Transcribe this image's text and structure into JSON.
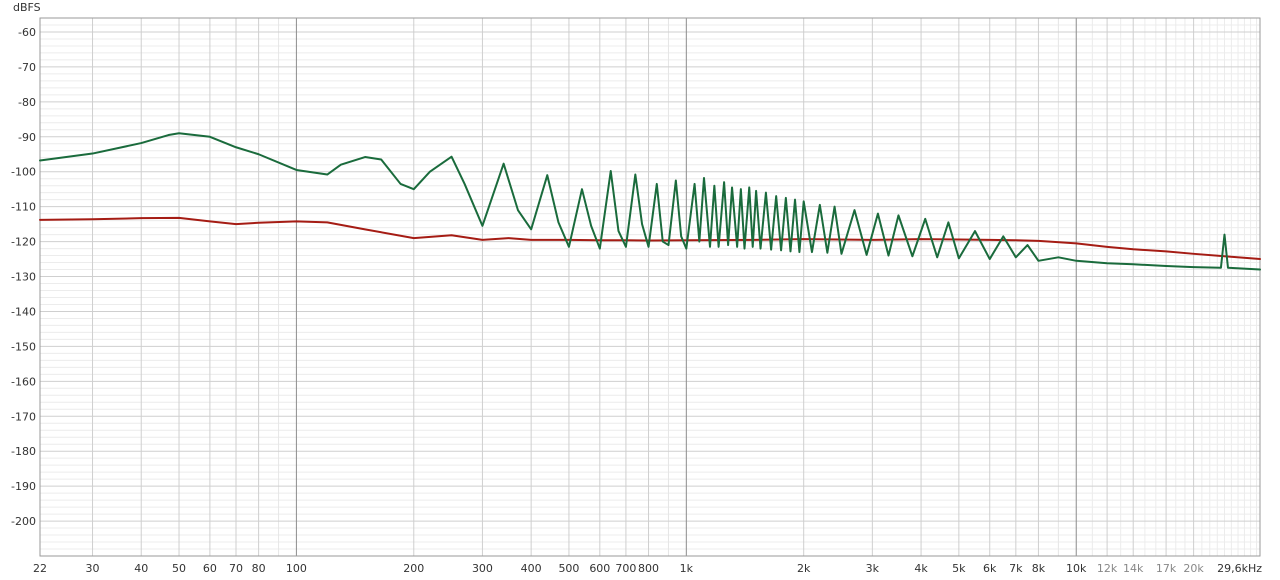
{
  "chart_data": {
    "type": "line",
    "y_unit_label": "dBFS",
    "x_scale": "log",
    "xlim": [
      22,
      29600
    ],
    "ylim": [
      -210,
      -56
    ],
    "grid": true,
    "y_ticks": [
      -60,
      -70,
      -80,
      -90,
      -100,
      -110,
      -120,
      -130,
      -140,
      -150,
      -160,
      -170,
      -180,
      -190,
      -200
    ],
    "y_tick_labels": [
      "-60",
      "-70",
      "-80",
      "-90",
      "-100",
      "-110",
      "-120",
      "-130",
      "-140",
      "-150",
      "-160",
      "-170",
      "-180",
      "-190",
      "-200"
    ],
    "x_ticks": [
      22,
      30,
      40,
      50,
      60,
      70,
      80,
      100,
      200,
      300,
      400,
      500,
      600,
      700,
      800,
      1000,
      2000,
      3000,
      4000,
      5000,
      6000,
      7000,
      8000,
      10000,
      12000,
      14000,
      17000,
      20000,
      29600
    ],
    "x_tick_labels": [
      "22",
      "30",
      "40",
      "50",
      "60",
      "70",
      "80",
      "100",
      "200",
      "300",
      "400",
      "500",
      "600",
      "700",
      "800",
      "1k",
      "2k",
      "3k",
      "4k",
      "5k",
      "6k",
      "7k",
      "8k",
      "10k",
      "12k",
      "14k",
      "17k",
      "20k",
      "29,6kHz"
    ],
    "series": [
      {
        "color": "#a51c14",
        "x": [
          22,
          30,
          40,
          50,
          60,
          70,
          80,
          100,
          120,
          150,
          200,
          250,
          300,
          350,
          400,
          500,
          600,
          700,
          800,
          1000,
          1500,
          2000,
          3000,
          4000,
          5000,
          6000,
          7000,
          8000,
          10000,
          12000,
          14000,
          17000,
          20000,
          24000,
          29600
        ],
        "y": [
          -113.8,
          -113.6,
          -113.3,
          -113.2,
          -114.2,
          -115.0,
          -114.6,
          -114.2,
          -114.5,
          -116.5,
          -119.0,
          -118.2,
          -119.5,
          -119.0,
          -119.5,
          -119.5,
          -119.6,
          -119.6,
          -119.7,
          -119.6,
          -119.5,
          -119.3,
          -119.5,
          -119.3,
          -119.4,
          -119.5,
          -119.6,
          -119.8,
          -120.5,
          -121.5,
          -122.2,
          -122.8,
          -123.5,
          -124.2,
          -125.0
        ]
      },
      {
        "color": "#1a6b3c",
        "x": [
          22,
          30,
          40,
          47,
          50,
          60,
          70,
          80,
          100,
          120,
          130,
          150,
          165,
          185,
          200,
          220,
          250,
          270,
          300,
          340,
          370,
          400,
          440,
          470,
          500,
          540,
          570,
          600,
          640,
          670,
          700,
          740,
          770,
          800,
          840,
          870,
          900,
          940,
          970,
          1000,
          1050,
          1080,
          1110,
          1150,
          1180,
          1210,
          1250,
          1280,
          1310,
          1350,
          1380,
          1410,
          1450,
          1480,
          1510,
          1550,
          1600,
          1650,
          1700,
          1750,
          1800,
          1850,
          1900,
          1950,
          2000,
          2100,
          2200,
          2300,
          2400,
          2500,
          2700,
          2900,
          3100,
          3300,
          3500,
          3800,
          4100,
          4400,
          4700,
          5000,
          5500,
          6000,
          6500,
          7000,
          7500,
          8000,
          9000,
          10000,
          12000,
          14000,
          17000,
          20000,
          23500,
          24000,
          24500,
          29600
        ],
        "y": [
          -96.8,
          -94.8,
          -91.8,
          -89.5,
          -89.0,
          -90.0,
          -93.0,
          -95.0,
          -99.5,
          -100.8,
          -98.0,
          -95.8,
          -96.5,
          -103.5,
          -105.0,
          -100.0,
          -95.7,
          -103.5,
          -115.5,
          -97.7,
          -111.0,
          -116.5,
          -101.0,
          -114.5,
          -121.5,
          -105.0,
          -115.5,
          -122.0,
          -99.8,
          -117.0,
          -121.5,
          -100.8,
          -115.0,
          -121.5,
          -103.5,
          -120.0,
          -121.0,
          -102.5,
          -118.5,
          -122.0,
          -103.5,
          -120.0,
          -101.8,
          -121.5,
          -104.0,
          -121.5,
          -103.0,
          -121.0,
          -104.5,
          -121.5,
          -105.0,
          -122.0,
          -104.5,
          -121.5,
          -105.5,
          -122.0,
          -106.0,
          -122.3,
          -107.0,
          -122.5,
          -107.5,
          -122.8,
          -108.0,
          -123.0,
          -108.5,
          -123.0,
          -109.5,
          -123.2,
          -110.0,
          -123.5,
          -111.0,
          -123.8,
          -112.0,
          -124.0,
          -112.5,
          -124.2,
          -113.5,
          -124.5,
          -114.5,
          -124.8,
          -117.0,
          -125.0,
          -118.5,
          -124.5,
          -121.0,
          -125.5,
          -124.5,
          -125.5,
          -126.2,
          -126.5,
          -127.0,
          -127.3,
          -127.5,
          -118.0,
          -127.5,
          -128.0
        ]
      }
    ]
  }
}
